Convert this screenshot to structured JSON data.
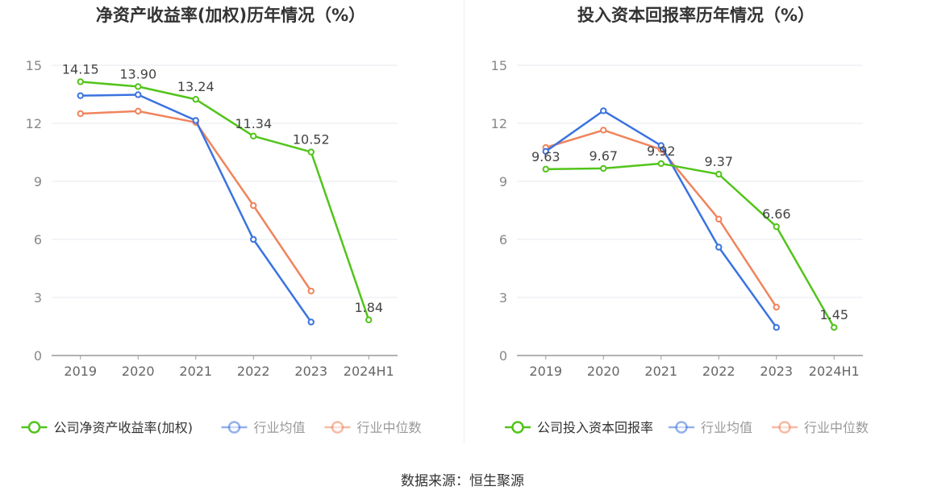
{
  "source_label": "数据来源：恒生聚源",
  "chart_data": [
    {
      "type": "line",
      "title": "净资产收益率(加权)历年情况（%）",
      "categories": [
        "2019",
        "2020",
        "2021",
        "2022",
        "2023",
        "2024H1"
      ],
      "ylim": [
        0,
        15
      ],
      "yticks": [
        0,
        3,
        6,
        9,
        12,
        15
      ],
      "grid": true,
      "legend": "bottom",
      "series": [
        {
          "name": "公司净资产收益率(加权)",
          "color": "#52c41a",
          "values": [
            14.15,
            13.9,
            13.24,
            11.34,
            10.52,
            1.84
          ],
          "labels": [
            "14.15",
            "13.90",
            "13.24",
            "11.34",
            "10.52",
            "1.84"
          ]
        },
        {
          "name": "行业均值",
          "color": "#3b73e0",
          "values": [
            13.43,
            13.48,
            12.15,
            6.0,
            1.73,
            null
          ]
        },
        {
          "name": "行业中位数",
          "color": "#f0845c",
          "values": [
            12.5,
            12.63,
            12.05,
            7.75,
            3.33,
            null
          ]
        }
      ]
    },
    {
      "type": "line",
      "title": "投入资本回报率历年情况（%）",
      "categories": [
        "2019",
        "2020",
        "2021",
        "2022",
        "2023",
        "2024H1"
      ],
      "ylim": [
        0,
        15
      ],
      "yticks": [
        0,
        3,
        6,
        9,
        12,
        15
      ],
      "grid": true,
      "legend": "bottom",
      "series": [
        {
          "name": "公司投入资本回报率",
          "color": "#52c41a",
          "values": [
            9.63,
            9.67,
            9.92,
            9.37,
            6.66,
            1.45
          ],
          "labels": [
            "9.63",
            "9.67",
            "9.92",
            "9.37",
            "6.66",
            "1.45"
          ]
        },
        {
          "name": "行业均值",
          "color": "#3b73e0",
          "values": [
            10.55,
            12.65,
            10.85,
            5.6,
            1.45,
            null
          ]
        },
        {
          "name": "行业中位数",
          "color": "#f0845c",
          "values": [
            10.75,
            11.65,
            10.65,
            7.05,
            2.5,
            null
          ]
        }
      ]
    }
  ]
}
